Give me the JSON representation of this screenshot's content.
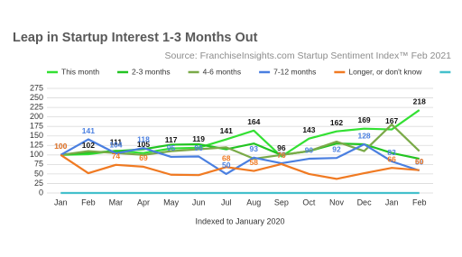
{
  "chart_data": {
    "type": "line",
    "title": "Leap in Startup Interest 1-3 Months Out",
    "subtitle": "Source: FranchiseInsights.com Startup Sentiment Index™ Feb 2021",
    "x_label": "Indexed to January 2020",
    "categories": [
      "Jan",
      "Feb",
      "Mar",
      "Apr",
      "May",
      "Jun",
      "Jul",
      "Aug",
      "Sep",
      "Oct",
      "Nov",
      "Dec",
      "Jan",
      "Feb"
    ],
    "ylim": [
      0,
      275
    ],
    "yticks": [
      0,
      25,
      50,
      75,
      100,
      125,
      150,
      175,
      200,
      225,
      250,
      275
    ],
    "grid": true,
    "legend": "top",
    "series": [
      {
        "name": "This month",
        "color": "#33e033",
        "label_color": "#111111",
        "values": [
          100,
          102,
          111,
          105,
          117,
          119,
          141,
          164,
          96,
          143,
          162,
          169,
          167,
          218
        ],
        "value_labels": [
          null,
          "102",
          "111",
          "105",
          "117",
          "119",
          "141",
          "164",
          "96",
          "143",
          "162",
          "169",
          "167",
          "218"
        ]
      },
      {
        "name": "2-3 months",
        "color": "#22c422",
        "values": [
          100,
          106,
          110,
          115,
          127,
          128,
          115,
          130,
          100,
          110,
          130,
          128,
          105,
          90
        ]
      },
      {
        "name": "4-6 months",
        "color": "#7aaa48",
        "values": [
          100,
          110,
          105,
          100,
          110,
          115,
          120,
          90,
          100,
          110,
          135,
          110,
          180,
          110
        ]
      },
      {
        "name": "7-12 months",
        "color": "#4a7fe0",
        "label_color": "#4a7fe0",
        "values": [
          100,
          141,
          104,
          118,
          95,
          96,
          50,
          93,
          78,
          90,
          92,
          128,
          83,
          59
        ],
        "value_labels": [
          "100",
          "141",
          "104",
          "118",
          "95",
          "96",
          "50",
          "93",
          "78",
          "90",
          "92",
          "128",
          "83",
          "59"
        ]
      },
      {
        "name": "Longer, or don't know",
        "color": "#f07a22",
        "label_color": "#f07a22",
        "values": [
          100,
          52,
          74,
          69,
          48,
          47,
          68,
          58,
          76,
          50,
          37,
          52,
          66,
          60
        ],
        "value_labels": [
          "100",
          null,
          "74",
          "69",
          null,
          null,
          "68",
          "58",
          "76",
          null,
          null,
          null,
          "66",
          "60"
        ]
      },
      {
        "name": null,
        "color": "#44c0cc",
        "values": [
          0,
          0,
          0,
          0,
          0,
          0,
          0,
          0,
          0,
          0,
          0,
          0,
          0,
          0
        ]
      }
    ]
  }
}
